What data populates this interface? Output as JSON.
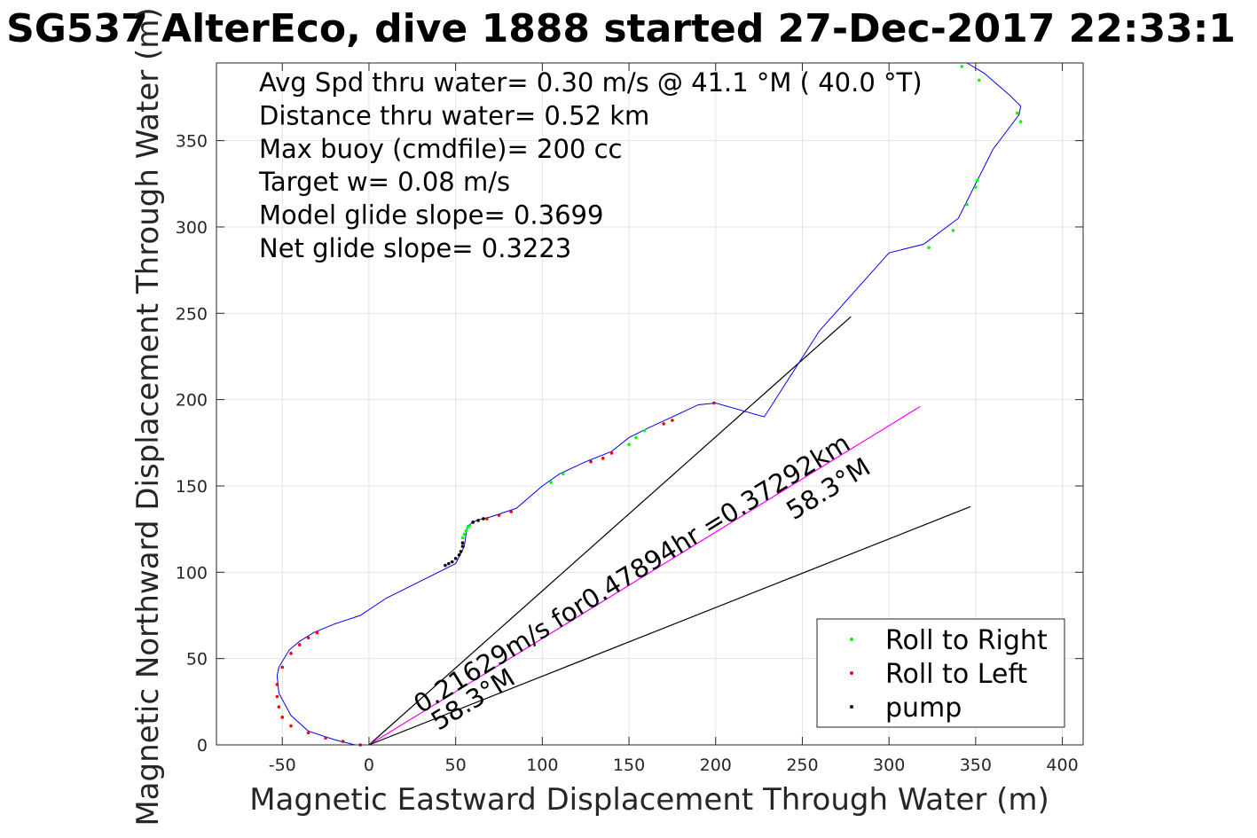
{
  "chart_data": {
    "type": "line",
    "title": "SG537 AlterEco, dive 1888 started 27-Dec-2017 22:33:1",
    "xlabel": "Magnetic Eastward Displacement Through Water (m)",
    "ylabel": "Magnetic Northward Displacement Through Water (m)",
    "xlim": [
      -88,
      412
    ],
    "ylim": [
      0,
      395
    ],
    "xticks": [
      -50,
      0,
      50,
      100,
      150,
      200,
      250,
      300,
      350,
      400
    ],
    "yticks": [
      0,
      50,
      100,
      150,
      200,
      250,
      300,
      350
    ],
    "grid": true,
    "stats": [
      "Avg Spd thru water=  0.30 m/s @  41.1 °M ( 40.0 °T)",
      "Distance thru water=  0.52 km",
      "Max buoy (cmdfile)= 200 cc",
      "Target w= 0.08 m/s",
      "Model glide slope= 0.3699",
      "Net glide slope= 0.3223"
    ],
    "track": {
      "color": "#0000ff",
      "x": [
        0,
        -8,
        -20,
        -35,
        -45,
        -52,
        -53,
        -52,
        -46,
        -40,
        -32,
        -20,
        -5,
        10,
        30,
        50,
        55,
        56,
        57,
        62,
        70,
        85,
        100,
        110,
        125,
        140,
        150,
        160,
        175,
        190,
        200,
        228,
        260,
        300,
        320,
        340,
        350,
        360,
        375,
        376,
        370,
        355,
        345
      ],
      "y": [
        0,
        0,
        3,
        8,
        17,
        30,
        40,
        45,
        55,
        60,
        65,
        70,
        75,
        85,
        95,
        105,
        115,
        122,
        127,
        130,
        132,
        137,
        150,
        157,
        164,
        170,
        178,
        183,
        190,
        197,
        198,
        190,
        240,
        285,
        290,
        305,
        325,
        345,
        365,
        370,
        376,
        389,
        395
      ]
    },
    "roll_right": {
      "color": "#00ff00",
      "label": "Roll to Right",
      "x": [
        54,
        55,
        56,
        57,
        58,
        105,
        112,
        150,
        154,
        159,
        323,
        337,
        345,
        350,
        351,
        374,
        376,
        342,
        352
      ],
      "y": [
        120,
        122,
        124,
        126,
        127,
        152,
        157,
        174,
        178,
        182,
        288,
        298,
        313,
        323,
        327,
        366,
        361,
        393,
        385
      ]
    },
    "roll_left": {
      "color": "#ff0000",
      "label": "Roll to Left",
      "x": [
        -5,
        -15,
        -25,
        -35,
        -45,
        -50,
        -52,
        -53,
        -53,
        -50,
        -45,
        -40,
        -35,
        -30,
        68,
        75,
        82,
        128,
        135,
        140,
        170,
        175,
        199
      ],
      "y": [
        0,
        2,
        4,
        7,
        11,
        16,
        22,
        28,
        35,
        45,
        53,
        58,
        62,
        65,
        131,
        133,
        135,
        164,
        166,
        169,
        186,
        188,
        198
      ]
    },
    "pump": {
      "color": "#000000",
      "label": "pump",
      "x": [
        44,
        46,
        48,
        50,
        52,
        53,
        54,
        54,
        60,
        63,
        66
      ],
      "y": [
        104,
        105,
        106,
        108,
        110,
        112,
        115,
        117,
        129,
        130,
        131
      ]
    },
    "reference_lines": [
      {
        "x": [
          0,
          278
        ],
        "y": [
          0,
          248
        ],
        "color": "#000000"
      },
      {
        "x": [
          0,
          318
        ],
        "y": [
          0,
          196
        ],
        "color": "#ff00ff"
      },
      {
        "x": [
          0,
          347
        ],
        "y": [
          0,
          138
        ],
        "color": "#000000"
      }
    ],
    "annotations": [
      {
        "text": "0.21629m/s for0.47894hr =0.37292km",
        "x": 30,
        "y": 18,
        "angle": 31.7
      },
      {
        "text": "58.3°M",
        "x": 40,
        "y": 8,
        "angle": 31.7
      },
      {
        "text": "58.3°M",
        "x": 245,
        "y": 130,
        "angle": 31.7
      }
    ],
    "legend": {
      "placement": "bottom-right"
    }
  }
}
